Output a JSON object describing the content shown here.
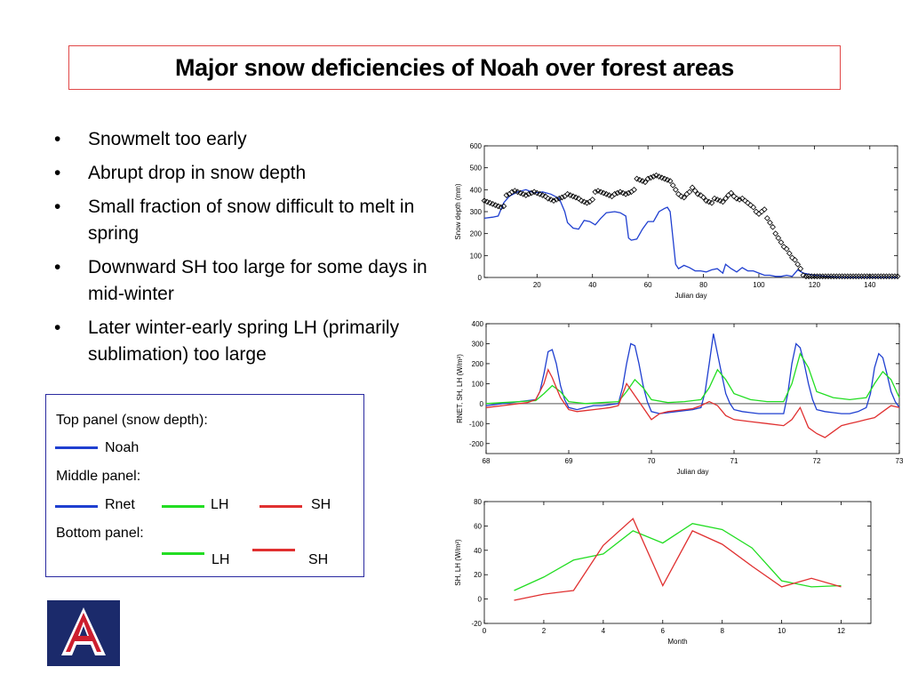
{
  "title": "Major snow deficiencies of Noah over forest areas",
  "bullets": [
    "Snowmelt too early",
    "Abrupt drop in snow depth",
    "Small fraction of snow difficult to melt in spring",
    "Downward SH too large for some days in mid-winter",
    "Later winter-early spring LH (primarily sublimation) too large"
  ],
  "bullet_glyph": "•",
  "legend": {
    "top_heading": "Top panel (snow depth):",
    "top_noah": "Noah",
    "middle_heading": "Middle panel:",
    "mid_rnet": "Rnet",
    "mid_lh": "LH",
    "mid_sh": "SH",
    "bottom_heading": "Bottom panel:",
    "bot_lh": "LH",
    "bot_sh": "SH",
    "colors": {
      "noah": "#1f3fd0",
      "rnet": "#1f3fd0",
      "lh": "#22dd22",
      "sh": "#e03030"
    }
  },
  "logo": {
    "letter": "A",
    "colors": {
      "navy": "#1b2a6b",
      "red": "#cc1f2f"
    }
  },
  "chart_data": [
    {
      "type": "line",
      "xlabel": "Julian day",
      "ylabel": "Snow depth (mm)",
      "xlim": [
        1,
        150
      ],
      "ylim": [
        0,
        600
      ],
      "xticks": [
        20,
        40,
        60,
        80,
        100,
        120,
        140
      ],
      "yticks": [
        0,
        100,
        200,
        300,
        400,
        500,
        600
      ],
      "grid": false,
      "series": [
        {
          "style": "line",
          "color": "#1f3fd0",
          "x": [
            1,
            4,
            6,
            8,
            10,
            13,
            16,
            19,
            22,
            25,
            28,
            30,
            31,
            33,
            35,
            37,
            39,
            41,
            43,
            45,
            48,
            50,
            52,
            53,
            54,
            56,
            58,
            60,
            62,
            64,
            66,
            67,
            68,
            69,
            70,
            71,
            73,
            75,
            77,
            79,
            81,
            83,
            85,
            87,
            88,
            90,
            92,
            94,
            96,
            98,
            100,
            102,
            104,
            106,
            108,
            110,
            112,
            114,
            116,
            118,
            120,
            122,
            124,
            130,
            140,
            150
          ],
          "y": [
            270,
            275,
            280,
            340,
            370,
            390,
            400,
            385,
            390,
            380,
            360,
            300,
            250,
            225,
            220,
            260,
            255,
            240,
            270,
            295,
            300,
            295,
            280,
            180,
            170,
            175,
            220,
            255,
            255,
            300,
            315,
            320,
            300,
            180,
            60,
            40,
            55,
            45,
            30,
            30,
            25,
            35,
            40,
            20,
            60,
            40,
            25,
            45,
            30,
            30,
            20,
            10,
            10,
            5,
            5,
            10,
            5,
            35,
            20,
            15,
            10,
            8,
            5,
            0,
            0,
            0
          ]
        },
        {
          "style": "markers",
          "marker": "diamond",
          "color": "#000000",
          "x": [
            1,
            2,
            3,
            4,
            5,
            6,
            7,
            8,
            9,
            10,
            11,
            12,
            13,
            14,
            15,
            16,
            17,
            18,
            19,
            20,
            21,
            22,
            23,
            24,
            25,
            26,
            27,
            28,
            29,
            30,
            31,
            32,
            33,
            34,
            35,
            36,
            37,
            38,
            39,
            40,
            41,
            42,
            43,
            44,
            45,
            46,
            47,
            48,
            49,
            50,
            51,
            52,
            53,
            54,
            55,
            56,
            57,
            58,
            59,
            60,
            61,
            62,
            63,
            64,
            65,
            66,
            67,
            68,
            69,
            70,
            71,
            72,
            73,
            74,
            75,
            76,
            77,
            78,
            79,
            80,
            81,
            82,
            83,
            84,
            85,
            86,
            87,
            88,
            89,
            90,
            91,
            92,
            93,
            94,
            95,
            96,
            97,
            98,
            99,
            100,
            101,
            102,
            103,
            104,
            105,
            106,
            107,
            108,
            109,
            110,
            111,
            112,
            113,
            114,
            115,
            116,
            117,
            118,
            119,
            120,
            121,
            122,
            123,
            124,
            125,
            126,
            127,
            128,
            129,
            130,
            131,
            132,
            133,
            134,
            135,
            136,
            137,
            138,
            139,
            140,
            141,
            142,
            143,
            144,
            145,
            146,
            147,
            148,
            149,
            150
          ],
          "y": [
            350,
            345,
            340,
            335,
            330,
            325,
            320,
            325,
            375,
            380,
            390,
            395,
            390,
            385,
            380,
            375,
            380,
            385,
            390,
            385,
            380,
            375,
            370,
            360,
            355,
            350,
            355,
            360,
            365,
            370,
            380,
            375,
            370,
            365,
            360,
            350,
            345,
            340,
            345,
            355,
            390,
            395,
            390,
            385,
            380,
            375,
            370,
            380,
            385,
            390,
            385,
            380,
            385,
            390,
            400,
            450,
            445,
            440,
            435,
            450,
            455,
            460,
            465,
            460,
            455,
            450,
            445,
            440,
            420,
            400,
            380,
            370,
            365,
            380,
            390,
            410,
            395,
            380,
            375,
            365,
            350,
            345,
            340,
            360,
            355,
            350,
            345,
            360,
            375,
            385,
            370,
            360,
            355,
            360,
            350,
            340,
            330,
            320,
            300,
            290,
            300,
            310,
            270,
            250,
            230,
            200,
            180,
            160,
            140,
            130,
            110,
            90,
            80,
            60,
            40,
            10,
            5,
            5,
            5,
            5,
            5,
            5,
            5,
            5,
            5,
            5,
            5,
            5,
            5,
            5,
            5,
            5,
            5,
            5,
            5,
            5,
            5,
            5,
            5,
            5,
            5,
            5,
            5,
            5,
            5,
            5,
            5,
            5,
            5,
            5
          ]
        }
      ]
    },
    {
      "type": "line",
      "xlabel": "Julian day",
      "ylabel": "RNET, SH, LH (W/m²)",
      "xlim": [
        68,
        73
      ],
      "ylim": [
        -250,
        400
      ],
      "xticks": [
        68,
        69,
        70,
        71,
        72,
        73
      ],
      "yticks": [
        -200,
        -100,
        0,
        100,
        200,
        300,
        400
      ],
      "zero_line": true,
      "grid": false,
      "series": [
        {
          "name": "Rnet",
          "color": "#1f3fd0",
          "x": [
            68,
            68.1,
            68.2,
            68.3,
            68.4,
            68.5,
            68.6,
            68.65,
            68.7,
            68.75,
            68.8,
            68.85,
            68.9,
            68.95,
            69,
            69.1,
            69.2,
            69.3,
            69.4,
            69.5,
            69.6,
            69.65,
            69.7,
            69.75,
            69.8,
            69.85,
            69.9,
            69.95,
            70,
            70.1,
            70.2,
            70.3,
            70.4,
            70.5,
            70.6,
            70.65,
            70.7,
            70.75,
            70.8,
            70.85,
            70.9,
            70.95,
            71,
            71.1,
            71.2,
            71.3,
            71.4,
            71.5,
            71.6,
            71.65,
            71.7,
            71.75,
            71.8,
            71.85,
            71.9,
            71.95,
            72,
            72.1,
            72.2,
            72.3,
            72.4,
            72.5,
            72.6,
            72.65,
            72.7,
            72.75,
            72.8,
            72.85,
            72.9,
            72.95,
            73
          ],
          "y": [
            -10,
            -5,
            0,
            5,
            10,
            15,
            20,
            60,
            150,
            260,
            270,
            200,
            90,
            20,
            -20,
            -30,
            -20,
            -10,
            -10,
            -5,
            0,
            80,
            200,
            300,
            290,
            200,
            90,
            10,
            -40,
            -50,
            -45,
            -40,
            -35,
            -30,
            -20,
            60,
            200,
            350,
            250,
            150,
            50,
            0,
            -30,
            -40,
            -45,
            -50,
            -50,
            -50,
            -50,
            50,
            200,
            300,
            280,
            200,
            100,
            20,
            -30,
            -40,
            -45,
            -50,
            -50,
            -40,
            -20,
            50,
            180,
            250,
            230,
            150,
            60,
            10,
            -20
          ]
        },
        {
          "name": "LH",
          "color": "#22dd22",
          "x": [
            68,
            68.2,
            68.4,
            68.6,
            68.7,
            68.8,
            68.9,
            69,
            69.2,
            69.4,
            69.6,
            69.7,
            69.8,
            69.9,
            70,
            70.2,
            70.4,
            70.6,
            70.7,
            70.8,
            70.9,
            71,
            71.2,
            71.4,
            71.6,
            71.7,
            71.8,
            71.9,
            72,
            72.2,
            72.4,
            72.6,
            72.7,
            72.8,
            72.9,
            73
          ],
          "y": [
            0,
            5,
            10,
            15,
            50,
            90,
            60,
            10,
            0,
            5,
            10,
            60,
            120,
            80,
            20,
            5,
            10,
            20,
            80,
            170,
            120,
            50,
            20,
            10,
            10,
            100,
            250,
            180,
            60,
            30,
            20,
            30,
            100,
            160,
            120,
            30
          ]
        },
        {
          "name": "SH",
          "color": "#e03030",
          "x": [
            68,
            68.1,
            68.2,
            68.3,
            68.4,
            68.5,
            68.6,
            68.7,
            68.75,
            68.8,
            68.85,
            68.9,
            69,
            69.1,
            69.2,
            69.3,
            69.4,
            69.5,
            69.6,
            69.7,
            69.8,
            69.9,
            70,
            70.1,
            70.2,
            70.3,
            70.4,
            70.5,
            70.6,
            70.7,
            70.8,
            70.9,
            71,
            71.2,
            71.4,
            71.6,
            71.7,
            71.8,
            71.9,
            72,
            72.1,
            72.2,
            72.3,
            72.4,
            72.5,
            72.6,
            72.7,
            72.8,
            72.9,
            73
          ],
          "y": [
            -20,
            -15,
            -10,
            -5,
            0,
            5,
            20,
            100,
            170,
            130,
            80,
            30,
            -30,
            -40,
            -35,
            -30,
            -25,
            -20,
            -10,
            100,
            40,
            -20,
            -80,
            -50,
            -40,
            -35,
            -30,
            -25,
            -10,
            10,
            -10,
            -60,
            -80,
            -90,
            -100,
            -110,
            -80,
            -20,
            -120,
            -150,
            -170,
            -140,
            -110,
            -100,
            -90,
            -80,
            -70,
            -40,
            -10,
            -20
          ]
        }
      ]
    },
    {
      "type": "line",
      "xlabel": "Month",
      "ylabel": "SH, LH (W/m²)",
      "xlim": [
        0,
        13
      ],
      "ylim": [
        -20,
        80
      ],
      "xticks": [
        0,
        2,
        4,
        6,
        8,
        10,
        12
      ],
      "yticks": [
        -20,
        0,
        20,
        40,
        60,
        80
      ],
      "grid": false,
      "series": [
        {
          "name": "LH",
          "color": "#22dd22",
          "x": [
            1,
            2,
            3,
            4,
            5,
            6,
            7,
            8,
            9,
            10,
            11,
            12
          ],
          "y": [
            7,
            18,
            32,
            37,
            56,
            46,
            62,
            57,
            42,
            15,
            10,
            11
          ]
        },
        {
          "name": "SH",
          "color": "#e03030",
          "x": [
            1,
            2,
            3,
            4,
            5,
            6,
            7,
            8,
            9,
            10,
            11,
            12
          ],
          "y": [
            -1,
            4,
            7,
            44,
            66,
            11,
            56,
            45,
            27,
            10,
            17,
            10
          ]
        }
      ]
    }
  ]
}
